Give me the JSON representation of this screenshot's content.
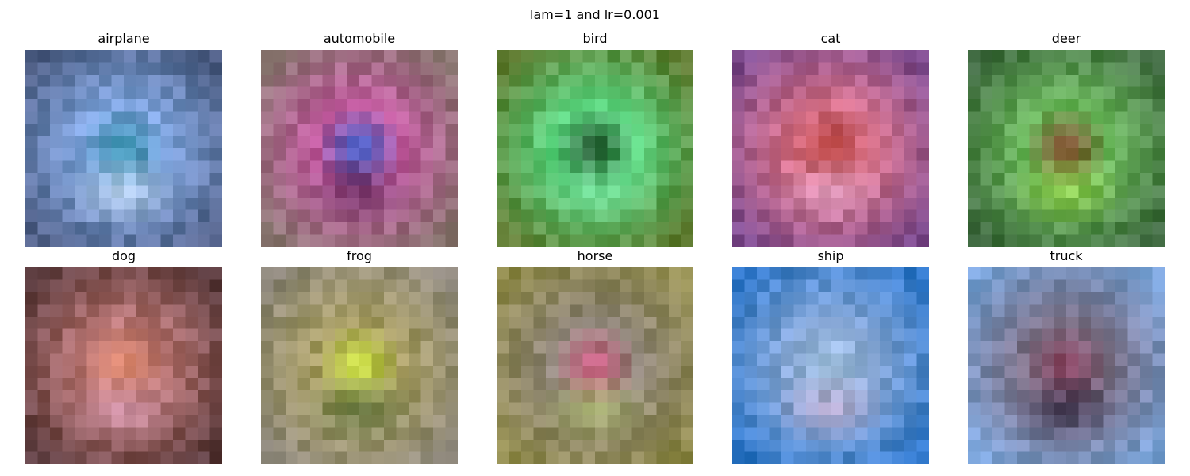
{
  "chart_data": {
    "type": "image-grid",
    "title": "lam=1 and lr=0.001",
    "grid": false,
    "axes_visible": false,
    "rows": 2,
    "columns": 5,
    "panels": [
      {
        "label": "airplane",
        "border_color": "#4f5f86",
        "mid_color": "#7ea4de",
        "center_color": "#2f8da8",
        "blob": "#d7e8f0"
      },
      {
        "label": "automobile",
        "border_color": "#8a7671",
        "mid_color": "#c15a9e",
        "center_color": "#355cc8",
        "blob": "#4a2450"
      },
      {
        "label": "bird",
        "border_color": "#5d7a2f",
        "mid_color": "#5bd57f",
        "center_color": "#1f4d2a",
        "blob": "#77d99b"
      },
      {
        "label": "cat",
        "border_color": "#7e4b8d",
        "mid_color": "#d57088",
        "center_color": "#b13a33",
        "blob": "#e7b6df"
      },
      {
        "label": "deer",
        "border_color": "#3f6a40",
        "mid_color": "#6bb85c",
        "center_color": "#7a3a1f",
        "blob": "#a9e04a"
      },
      {
        "label": "dog",
        "border_color": "#5a3a3c",
        "mid_color": "#b87573",
        "center_color": "#e28a6d",
        "blob": "#d9a0c2"
      },
      {
        "label": "frog",
        "border_color": "#8d877a",
        "mid_color": "#a79d62",
        "center_color": "#cbe33a",
        "blob": "#4a6b3a"
      },
      {
        "label": "horse",
        "border_color": "#8f8a4b",
        "mid_color": "#8e8478",
        "center_color": "#c8527a",
        "blob": "#b9d06a"
      },
      {
        "label": "ship",
        "border_color": "#2f77c9",
        "mid_color": "#88a8d6",
        "center_color": "#a7c7e6",
        "blob": "#cfa6bf"
      },
      {
        "label": "truck",
        "border_color": "#7aa3d8",
        "mid_color": "#7b6f84",
        "center_color": "#8a3f5c",
        "blob": "#2a1f3d"
      }
    ]
  }
}
